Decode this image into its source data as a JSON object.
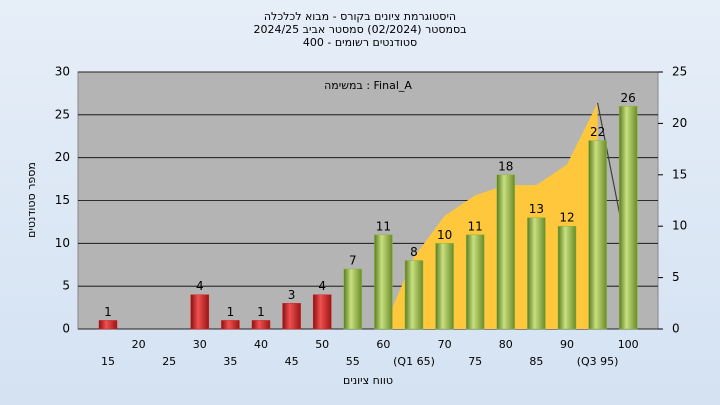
{
  "chart_data": {
    "type": "bar",
    "title": [
      "היסטוגרמת ציונים בקורס - מבוא לכלכלה",
      "בסמסטר  (02/2024)  סמסטר אביב 2024/25",
      "סטודנטים רשומים - 400"
    ],
    "annotation": "במשימה : Final_A",
    "ylabel": "מספר סטודנטים",
    "xlabel": "טווח ציונים",
    "categories": [
      "15",
      "20",
      "25",
      "30",
      "35",
      "40",
      "45",
      "50",
      "55",
      "60",
      "(Q1 65)",
      "70",
      "75",
      "80",
      "85",
      "90",
      "(Q3 95)",
      "100"
    ],
    "values": [
      1,
      0,
      0,
      4,
      1,
      1,
      3,
      4,
      7,
      11,
      8,
      10,
      11,
      18,
      13,
      12,
      22,
      26
    ],
    "colors": [
      "#d42020",
      "#d42020",
      "#d42020",
      "#d42020",
      "#d42020",
      "#d42020",
      "#d42020",
      "#d42020",
      "#8cb83c",
      "#8cb83c",
      "#8cb83c",
      "#8cb83c",
      "#8cb83c",
      "#8cb83c",
      "#8cb83c",
      "#8cb83c",
      "#8cb83c",
      "#8cb83c"
    ],
    "series": [
      {
        "kind": "area",
        "axis": "y2",
        "color": "#ffc83c",
        "values": [
          null,
          null,
          null,
          null,
          null,
          null,
          null,
          null,
          null,
          0,
          7,
          11,
          13,
          14,
          14,
          16,
          22,
          null
        ]
      },
      {
        "kind": "line",
        "axis": "y2",
        "color": "#404040",
        "values": [
          null,
          null,
          null,
          null,
          null,
          null,
          null,
          null,
          null,
          null,
          null,
          null,
          null,
          null,
          null,
          null,
          22,
          7
        ]
      }
    ],
    "ylim": [
      0,
      30
    ],
    "yticks": [
      0,
      5,
      10,
      15,
      20,
      25,
      30
    ],
    "y2lim": [
      0,
      25
    ],
    "y2ticks": [
      0,
      5,
      10,
      15,
      20,
      25
    ],
    "grid": true
  }
}
